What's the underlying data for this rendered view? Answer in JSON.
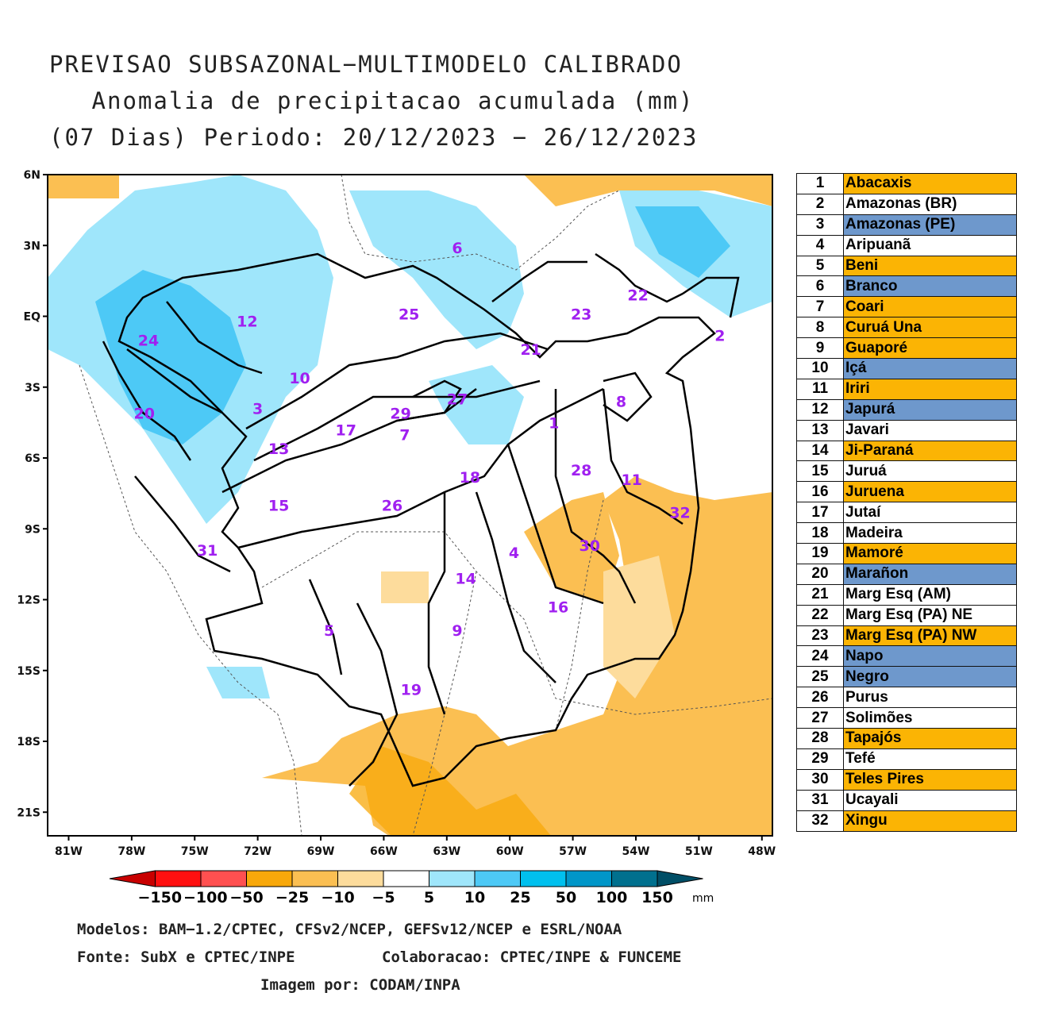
{
  "title": {
    "line1": "PREVISAO SUBSAZONAL−MULTIMODELO CALIBRADO",
    "line2": "Anomalia de precipitacao acumulada (mm)",
    "line3": "(07 Dias) Periodo: 20/12/2023 − 26/12/2023"
  },
  "map": {
    "lat_labels": [
      "6N",
      "3N",
      "EQ",
      "3S",
      "6S",
      "9S",
      "12S",
      "15S",
      "18S",
      "21S"
    ],
    "lon_labels": [
      "81W",
      "78W",
      "75W",
      "72W",
      "69W",
      "66W",
      "63W",
      "60W",
      "57W",
      "54W",
      "51W",
      "48W"
    ],
    "lat_range": [
      -22,
      6
    ],
    "lon_range": [
      -82,
      -47.5
    ],
    "basin_numbers": [
      {
        "n": "1",
        "lon": -57.9,
        "lat": -4.5
      },
      {
        "n": "2",
        "lon": -50.0,
        "lat": -0.8
      },
      {
        "n": "3",
        "lon": -72.0,
        "lat": -3.9
      },
      {
        "n": "4",
        "lon": -59.8,
        "lat": -10.0
      },
      {
        "n": "5",
        "lon": -68.6,
        "lat": -13.3
      },
      {
        "n": "6",
        "lon": -62.5,
        "lat": 2.9
      },
      {
        "n": "7",
        "lon": -65.0,
        "lat": -5.0
      },
      {
        "n": "8",
        "lon": -54.7,
        "lat": -3.6
      },
      {
        "n": "9",
        "lon": -62.5,
        "lat": -13.3
      },
      {
        "n": "10",
        "lon": -70.0,
        "lat": -2.6
      },
      {
        "n": "11",
        "lon": -54.2,
        "lat": -6.9
      },
      {
        "n": "12",
        "lon": -72.5,
        "lat": -0.2
      },
      {
        "n": "13",
        "lon": -71.0,
        "lat": -5.6
      },
      {
        "n": "14",
        "lon": -62.1,
        "lat": -11.1
      },
      {
        "n": "15",
        "lon": -71.0,
        "lat": -8.0
      },
      {
        "n": "16",
        "lon": -57.7,
        "lat": -12.3
      },
      {
        "n": "17",
        "lon": -67.8,
        "lat": -4.8
      },
      {
        "n": "18",
        "lon": -61.9,
        "lat": -6.8
      },
      {
        "n": "19",
        "lon": -64.7,
        "lat": -15.8
      },
      {
        "n": "20",
        "lon": -77.4,
        "lat": -4.1
      },
      {
        "n": "21",
        "lon": -59.0,
        "lat": -1.4
      },
      {
        "n": "22",
        "lon": -53.9,
        "lat": 0.9
      },
      {
        "n": "23",
        "lon": -56.6,
        "lat": 0.1
      },
      {
        "n": "24",
        "lon": -77.2,
        "lat": -1.0
      },
      {
        "n": "25",
        "lon": -64.8,
        "lat": 0.1
      },
      {
        "n": "26",
        "lon": -65.6,
        "lat": -8.0
      },
      {
        "n": "27",
        "lon": -62.5,
        "lat": -3.5
      },
      {
        "n": "28",
        "lon": -56.6,
        "lat": -6.5
      },
      {
        "n": "29",
        "lon": -65.2,
        "lat": -4.1
      },
      {
        "n": "30",
        "lon": -56.2,
        "lat": -9.7
      },
      {
        "n": "31",
        "lon": -74.4,
        "lat": -9.9
      },
      {
        "n": "32",
        "lon": -51.9,
        "lat": -8.3
      }
    ]
  },
  "legend": {
    "colors": {
      "orange": "#fbb404",
      "blue": "#6e98cc",
      "white": "#ffffff"
    },
    "rows": [
      {
        "num": "1",
        "name": "Abacaxis",
        "color": "orange"
      },
      {
        "num": "2",
        "name": "Amazonas (BR)",
        "color": "white"
      },
      {
        "num": "3",
        "name": "Amazonas (PE)",
        "color": "blue"
      },
      {
        "num": "4",
        "name": "Aripuanã",
        "color": "white"
      },
      {
        "num": "5",
        "name": "Beni",
        "color": "orange"
      },
      {
        "num": "6",
        "name": "Branco",
        "color": "blue"
      },
      {
        "num": "7",
        "name": "Coari",
        "color": "orange"
      },
      {
        "num": "8",
        "name": "Curuá Una",
        "color": "orange"
      },
      {
        "num": "9",
        "name": "Guaporé",
        "color": "orange"
      },
      {
        "num": "10",
        "name": "Içá",
        "color": "blue"
      },
      {
        "num": "11",
        "name": "Iriri",
        "color": "orange"
      },
      {
        "num": "12",
        "name": "Japurá",
        "color": "blue"
      },
      {
        "num": "13",
        "name": "Javari",
        "color": "white"
      },
      {
        "num": "14",
        "name": "Ji-Paraná",
        "color": "orange"
      },
      {
        "num": "15",
        "name": "Juruá",
        "color": "white"
      },
      {
        "num": "16",
        "name": "Juruena",
        "color": "orange"
      },
      {
        "num": "17",
        "name": "Jutaí",
        "color": "white"
      },
      {
        "num": "18",
        "name": "Madeira",
        "color": "white"
      },
      {
        "num": "19",
        "name": "Mamoré",
        "color": "orange"
      },
      {
        "num": "20",
        "name": "Marañon",
        "color": "blue"
      },
      {
        "num": "21",
        "name": "Marg Esq (AM)",
        "color": "white"
      },
      {
        "num": "22",
        "name": "Marg Esq (PA) NE",
        "color": "white"
      },
      {
        "num": "23",
        "name": "Marg Esq (PA) NW",
        "color": "orange"
      },
      {
        "num": "24",
        "name": "Napo",
        "color": "blue"
      },
      {
        "num": "25",
        "name": "Negro",
        "color": "blue"
      },
      {
        "num": "26",
        "name": "Purus",
        "color": "white"
      },
      {
        "num": "27",
        "name": "Solimões",
        "color": "white"
      },
      {
        "num": "28",
        "name": "Tapajós",
        "color": "orange"
      },
      {
        "num": "29",
        "name": "Tefé",
        "color": "white"
      },
      {
        "num": "30",
        "name": "Teles Pires",
        "color": "orange"
      },
      {
        "num": "31",
        "name": "Ucayali",
        "color": "white"
      },
      {
        "num": "32",
        "name": "Xingu",
        "color": "orange"
      }
    ]
  },
  "colorbar": {
    "colors": [
      "#c80000",
      "#ff1010",
      "#ff5050",
      "#f8a80a",
      "#fbbf52",
      "#fddc9c",
      "#ffffff",
      "#9fe6fb",
      "#4dc9f6",
      "#00c0ee",
      "#0096c8",
      "#00708e",
      "#004e66"
    ],
    "labels": [
      "−150",
      "−100",
      "−50",
      "−25",
      "−10",
      "−5",
      "5",
      "10",
      "25",
      "50",
      "100",
      "150"
    ],
    "unit": "mm"
  },
  "credits": {
    "models": "Modelos: BAM−1.2/CPTEC, CFSv2/NCEP, GEFSv12/NCEP e ESRL/NOAA",
    "source": "Fonte: SubX e CPTEC/INPE",
    "collab": "Colaboracao: CPTEC/INPE & FUNCEME",
    "image": "Imagem por: CODAM/INPA"
  }
}
